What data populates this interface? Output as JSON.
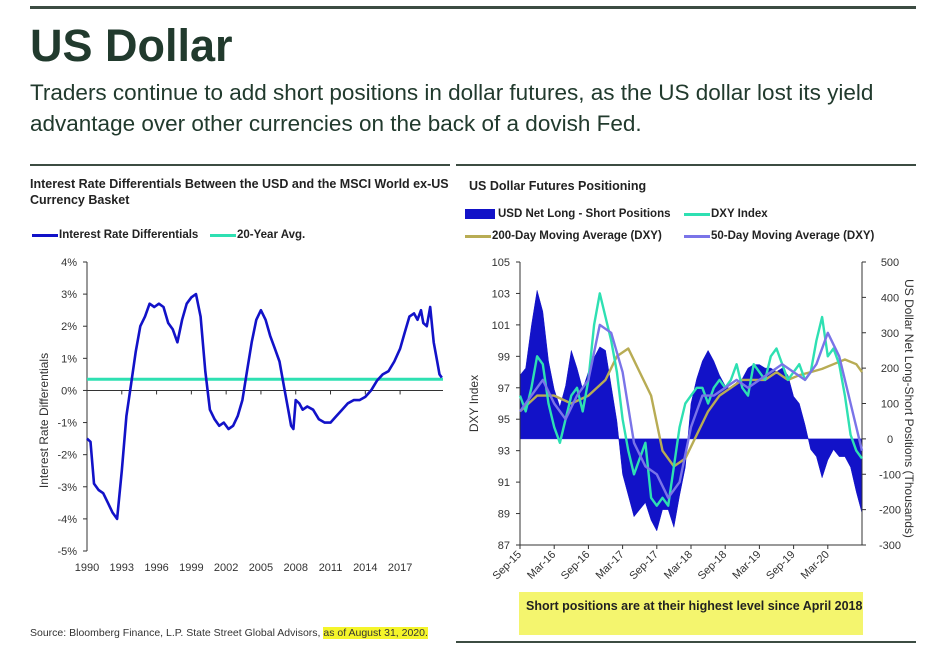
{
  "title": "US Dollar",
  "subtitle": "Traders continue to add short positions in dollar futures, as the US dollar lost its yield advantage over other currencies on the back of a dovish Fed.",
  "source": {
    "text": "Source: Bloomberg Finance, L.P. State Street Global Advisors, ",
    "highlight": "as of August 31, 2020."
  },
  "callout": "Short positions are at their highest level since April 2018",
  "colors": {
    "heading": "#213a2d",
    "rule": "#3c4c42",
    "blue": "#1212c8",
    "teal": "#2ee0b2",
    "olive": "#b8ac54",
    "purple": "#7a74e8",
    "highlight": "#f5f52a"
  },
  "chart_data": [
    {
      "type": "line",
      "title": "Interest Rate Differentials Between the USD and the MSCI World ex-US Currency Basket",
      "xlabel": "",
      "ylabel": "Interest Rate Differentials",
      "x_ticks": [
        "1990",
        "1993",
        "1996",
        "1999",
        "2002",
        "2005",
        "2008",
        "2011",
        "2014",
        "2017"
      ],
      "y_ticks": [
        "4%",
        "3%",
        "2%",
        "1%",
        "0%",
        "-1%",
        "-2%",
        "-3%",
        "-4%",
        "-5%"
      ],
      "xlim": [
        1990,
        2020.7
      ],
      "ylim": [
        -5,
        4
      ],
      "grid": false,
      "legend_position": "top-left",
      "series": [
        {
          "name": "Interest Rate Differentials",
          "x": [
            1990,
            1990.3,
            1990.6,
            1991,
            1991.4,
            1991.8,
            1992.2,
            1992.6,
            1993,
            1993.4,
            1993.8,
            1994.2,
            1994.6,
            1995,
            1995.4,
            1995.8,
            1996.2,
            1996.6,
            1997,
            1997.4,
            1997.8,
            1998.2,
            1998.6,
            1999,
            1999.4,
            1999.8,
            2000.2,
            2000.6,
            2001,
            2001.4,
            2001.8,
            2002.2,
            2002.6,
            2003,
            2003.4,
            2003.8,
            2004.2,
            2004.6,
            2005,
            2005.4,
            2005.8,
            2006.2,
            2006.6,
            2007,
            2007.4,
            2007.6,
            2007.8,
            2008,
            2008.3,
            2008.6,
            2009,
            2009.5,
            2010,
            2010.5,
            2011,
            2011.5,
            2012,
            2012.5,
            2013,
            2013.5,
            2014,
            2014.5,
            2015,
            2015.5,
            2016,
            2016.5,
            2017,
            2017.4,
            2017.8,
            2018.2,
            2018.5,
            2018.8,
            2019,
            2019.3,
            2019.6,
            2019.9,
            2020.2,
            2020.4,
            2020.6
          ],
          "y": [
            -1.5,
            -1.6,
            -2.9,
            -3.1,
            -3.2,
            -3.5,
            -3.8,
            -4.0,
            -2.5,
            -0.8,
            0.2,
            1.2,
            2.0,
            2.3,
            2.7,
            2.6,
            2.7,
            2.6,
            2.1,
            1.9,
            1.5,
            2.2,
            2.7,
            2.9,
            3.0,
            2.3,
            0.6,
            -0.6,
            -0.9,
            -1.1,
            -1.0,
            -1.2,
            -1.1,
            -0.8,
            -0.3,
            0.6,
            1.5,
            2.2,
            2.5,
            2.2,
            1.7,
            1.3,
            0.9,
            0.1,
            -0.7,
            -1.1,
            -1.2,
            -0.3,
            -0.4,
            -0.6,
            -0.5,
            -0.6,
            -0.9,
            -1.0,
            -1.0,
            -0.8,
            -0.6,
            -0.4,
            -0.3,
            -0.3,
            -0.2,
            0.0,
            0.3,
            0.5,
            0.6,
            0.9,
            1.3,
            1.8,
            2.3,
            2.4,
            2.2,
            2.5,
            2.1,
            2.0,
            2.6,
            1.5,
            0.9,
            0.5,
            0.4
          ]
        },
        {
          "name": "20-Year Avg.",
          "x": [
            1990,
            2020.7
          ],
          "y": [
            0.35,
            0.35
          ]
        }
      ]
    },
    {
      "type": "line",
      "title": "US Dollar Futures Positioning",
      "ylabel": "DXY Index",
      "y2label": "US Dollar Net Long-Short Positions (Thousands)",
      "x_ticks": [
        "Sep-15",
        "Mar-16",
        "Sep-16",
        "Mar-17",
        "Sep-17",
        "Mar-18",
        "Sep-18",
        "Mar-19",
        "Sep-19",
        "Mar-20"
      ],
      "y_ticks": [
        "105",
        "103",
        "101",
        "99",
        "97",
        "95",
        "93",
        "91",
        "89",
        "87"
      ],
      "y2_ticks": [
        "500",
        "400",
        "300",
        "200",
        "100",
        "0",
        "-100",
        "-200",
        "-300"
      ],
      "xlim": [
        0,
        60
      ],
      "ylim": [
        87,
        105
      ],
      "y2lim": [
        -300,
        500
      ],
      "grid": false,
      "legend_position": "top",
      "series": [
        {
          "name": "USD Net Long - Short Positions",
          "kind": "area",
          "axis": "right",
          "x": [
            0,
            1,
            2,
            3,
            4,
            5,
            6,
            7,
            8,
            9,
            10,
            11,
            12,
            13,
            14,
            15,
            16,
            17,
            18,
            19,
            20,
            21,
            22,
            23,
            24,
            25,
            26,
            27,
            28,
            29,
            30,
            31,
            32,
            33,
            34,
            35,
            36,
            37,
            38,
            39,
            40,
            41,
            42,
            43,
            44,
            45,
            46,
            47,
            48,
            49,
            50,
            51,
            52,
            53,
            54,
            55,
            56,
            57,
            58,
            59,
            60
          ],
          "y": [
            180,
            200,
            320,
            420,
            360,
            220,
            140,
            90,
            150,
            250,
            200,
            140,
            190,
            230,
            260,
            250,
            150,
            50,
            -100,
            -160,
            -220,
            -200,
            -180,
            -230,
            -260,
            -200,
            -200,
            -250,
            -160,
            -80,
            100,
            170,
            220,
            250,
            220,
            180,
            150,
            140,
            160,
            170,
            200,
            210,
            210,
            200,
            200,
            190,
            200,
            180,
            120,
            100,
            40,
            -30,
            -50,
            -110,
            -60,
            -30,
            -50,
            -50,
            -80,
            -150,
            -210
          ]
        },
        {
          "name": "DXY Index",
          "axis": "left",
          "x": [
            0,
            1,
            2,
            3,
            4,
            5,
            6,
            7,
            8,
            9,
            10,
            11,
            12,
            13,
            14,
            15,
            16,
            17,
            18,
            19,
            20,
            21,
            22,
            23,
            24,
            25,
            26,
            27,
            28,
            29,
            30,
            31,
            32,
            33,
            34,
            35,
            36,
            37,
            38,
            39,
            40,
            41,
            42,
            43,
            44,
            45,
            46,
            47,
            48,
            49,
            50,
            51,
            52,
            53,
            54,
            55,
            56,
            57,
            58,
            59,
            60
          ],
          "y": [
            96.5,
            95.5,
            97.0,
            99.0,
            98.5,
            96.0,
            94.5,
            93.5,
            95.0,
            96.5,
            97.0,
            95.5,
            97.5,
            101.0,
            103.0,
            101.5,
            100.0,
            98.0,
            95.0,
            93.0,
            91.5,
            92.5,
            93.5,
            90.0,
            89.5,
            90.0,
            89.5,
            92.0,
            94.5,
            96.0,
            96.5,
            97.0,
            97.0,
            96.0,
            97.0,
            97.5,
            97.0,
            97.5,
            98.5,
            97.0,
            96.5,
            98.5,
            98.0,
            97.5,
            99.0,
            99.5,
            98.5,
            97.5,
            98.0,
            98.5,
            97.5,
            98.0,
            100.0,
            101.5,
            99.0,
            99.5,
            98.5,
            96.5,
            94.0,
            93.0,
            92.5
          ]
        },
        {
          "name": "200-Day Moving Average (DXY)",
          "axis": "left",
          "x": [
            0,
            3,
            6,
            9,
            12,
            15,
            17,
            19,
            21,
            23,
            25,
            27,
            29,
            31,
            33,
            35,
            37,
            39,
            41,
            43,
            45,
            47,
            49,
            51,
            53,
            55,
            57,
            59,
            60
          ],
          "y": [
            95.5,
            96.5,
            96.5,
            96.0,
            96.5,
            97.5,
            99.0,
            99.5,
            98.0,
            96.5,
            93.0,
            92.0,
            92.5,
            94.0,
            95.5,
            96.5,
            97.0,
            97.5,
            97.5,
            97.5,
            98.0,
            97.5,
            97.8,
            98.0,
            98.2,
            98.5,
            98.8,
            98.5,
            98.0
          ]
        },
        {
          "name": "50-Day Moving Average (DXY)",
          "axis": "left",
          "x": [
            0,
            2,
            4,
            6,
            8,
            10,
            12,
            14,
            16,
            18,
            20,
            22,
            24,
            26,
            28,
            30,
            32,
            34,
            36,
            38,
            40,
            42,
            44,
            46,
            48,
            50,
            52,
            54,
            56,
            58,
            60
          ],
          "y": [
            95.5,
            96.5,
            97.5,
            96.0,
            95.0,
            96.5,
            97.5,
            101.0,
            100.5,
            98.0,
            93.5,
            92.0,
            91.5,
            90.0,
            91.0,
            94.5,
            96.5,
            96.5,
            97.0,
            97.5,
            97.0,
            97.5,
            98.0,
            98.5,
            98.0,
            97.5,
            98.5,
            100.5,
            99.0,
            96.0,
            93.0
          ]
        }
      ]
    }
  ]
}
